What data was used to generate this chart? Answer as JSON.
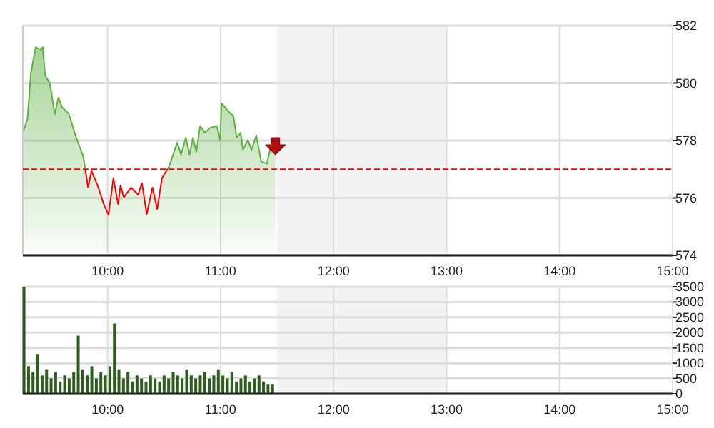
{
  "chart_data": [
    {
      "type": "area",
      "x": [
        9.257,
        9.291,
        9.321,
        9.363,
        9.405,
        9.426,
        9.447,
        9.489,
        9.532,
        9.565,
        9.595,
        9.658,
        9.722,
        9.785,
        9.827,
        9.857,
        9.911,
        9.966,
        10.008,
        10.051,
        10.093,
        10.114,
        10.143,
        10.207,
        10.27,
        10.304,
        10.346,
        10.397,
        10.439,
        10.481,
        10.544,
        10.616,
        10.65,
        10.692,
        10.726,
        10.755,
        10.785,
        10.819,
        10.861,
        10.903,
        10.966,
        10.996,
        11.008,
        11.072,
        11.114,
        11.143,
        11.177,
        11.198,
        11.241,
        11.274,
        11.316,
        11.359,
        11.409,
        11.451,
        11.485
      ],
      "series": [
        {
          "color": "#5cb040",
          "values": [
            578.35,
            578.76,
            580.34,
            581.25,
            581.17,
            581.25,
            580.26,
            580.0,
            578.92,
            579.5,
            579.17,
            578.92,
            578.1,
            577.44,
            576.36,
            576.94,
            576.44,
            575.78,
            575.41,
            576.69,
            575.78,
            576.44,
            576.02,
            576.36,
            576.11,
            576.52,
            575.44,
            576.36,
            575.61,
            576.69,
            577.1,
            577.93,
            577.51,
            578.1,
            577.51,
            578.1,
            577.6,
            578.51,
            578.27,
            578.43,
            578.51,
            578.02,
            579.3,
            579.0,
            578.85,
            578.1,
            578.27,
            577.68,
            578.02,
            577.68,
            578.18,
            577.27,
            577.19,
            577.93,
            577.85
          ]
        }
      ],
      "xlim": [
        9.25,
        15
      ],
      "xticks": [
        {
          "value": 10,
          "label": "10:00"
        },
        {
          "value": 11,
          "label": "11:00"
        },
        {
          "value": 12,
          "label": "12:00"
        },
        {
          "value": 13,
          "label": "13:00"
        },
        {
          "value": 14,
          "label": "14:00"
        },
        {
          "value": 15,
          "label": "15:00"
        }
      ],
      "ylim": [
        574,
        582
      ],
      "yticks": [
        574,
        576,
        578,
        580,
        582
      ],
      "ref_lines": [
        {
          "axis": "y",
          "value": 577,
          "color": "#ff0000",
          "line_style": "dashed"
        }
      ],
      "bands": [
        {
          "axis": "x",
          "from": 11.5,
          "to": 13,
          "color": "#f2f2f2"
        }
      ],
      "grid": true
    },
    {
      "type": "bar",
      "x": [
        9.26,
        9.3,
        9.34,
        9.38,
        9.42,
        9.46,
        9.5,
        9.54,
        9.58,
        9.62,
        9.66,
        9.7,
        9.74,
        9.78,
        9.82,
        9.86,
        9.9,
        9.94,
        9.98,
        10.02,
        10.06,
        10.1,
        10.14,
        10.18,
        10.22,
        10.26,
        10.3,
        10.34,
        10.38,
        10.42,
        10.46,
        10.5,
        10.54,
        10.58,
        10.62,
        10.66,
        10.7,
        10.74,
        10.78,
        10.82,
        10.86,
        10.9,
        10.94,
        10.98,
        11.02,
        11.06,
        11.1,
        11.14,
        11.18,
        11.22,
        11.26,
        11.3,
        11.34,
        11.38,
        11.42,
        11.46
      ],
      "series": [
        {
          "color": "#2d5e1e",
          "values": [
            3500,
            900,
            700,
            1300,
            600,
            800,
            500,
            700,
            400,
            600,
            500,
            700,
            1900,
            800,
            600,
            900,
            500,
            700,
            600,
            900,
            2300,
            800,
            500,
            700,
            400,
            600,
            500,
            400,
            600,
            500,
            400,
            600,
            500,
            700,
            600,
            500,
            800,
            600,
            500,
            600,
            700,
            500,
            600,
            800,
            600,
            500,
            700,
            400,
            500,
            600,
            400,
            500,
            600,
            400,
            300,
            300
          ]
        }
      ],
      "xlim": [
        9.25,
        15
      ],
      "xticks": [
        {
          "value": 10,
          "label": "10:00"
        },
        {
          "value": 11,
          "label": "11:00"
        },
        {
          "value": 12,
          "label": "12:00"
        },
        {
          "value": 13,
          "label": "13:00"
        },
        {
          "value": 14,
          "label": "14:00"
        },
        {
          "value": 15,
          "label": "15:00"
        }
      ],
      "ylim": [
        0,
        3500
      ],
      "yticks": [
        0,
        500,
        1000,
        1500,
        2000,
        2500,
        3000,
        3500
      ],
      "bands": [
        {
          "axis": "x",
          "from": 11.5,
          "to": 13,
          "color": "#f2f2f2"
        }
      ],
      "grid": true
    }
  ]
}
